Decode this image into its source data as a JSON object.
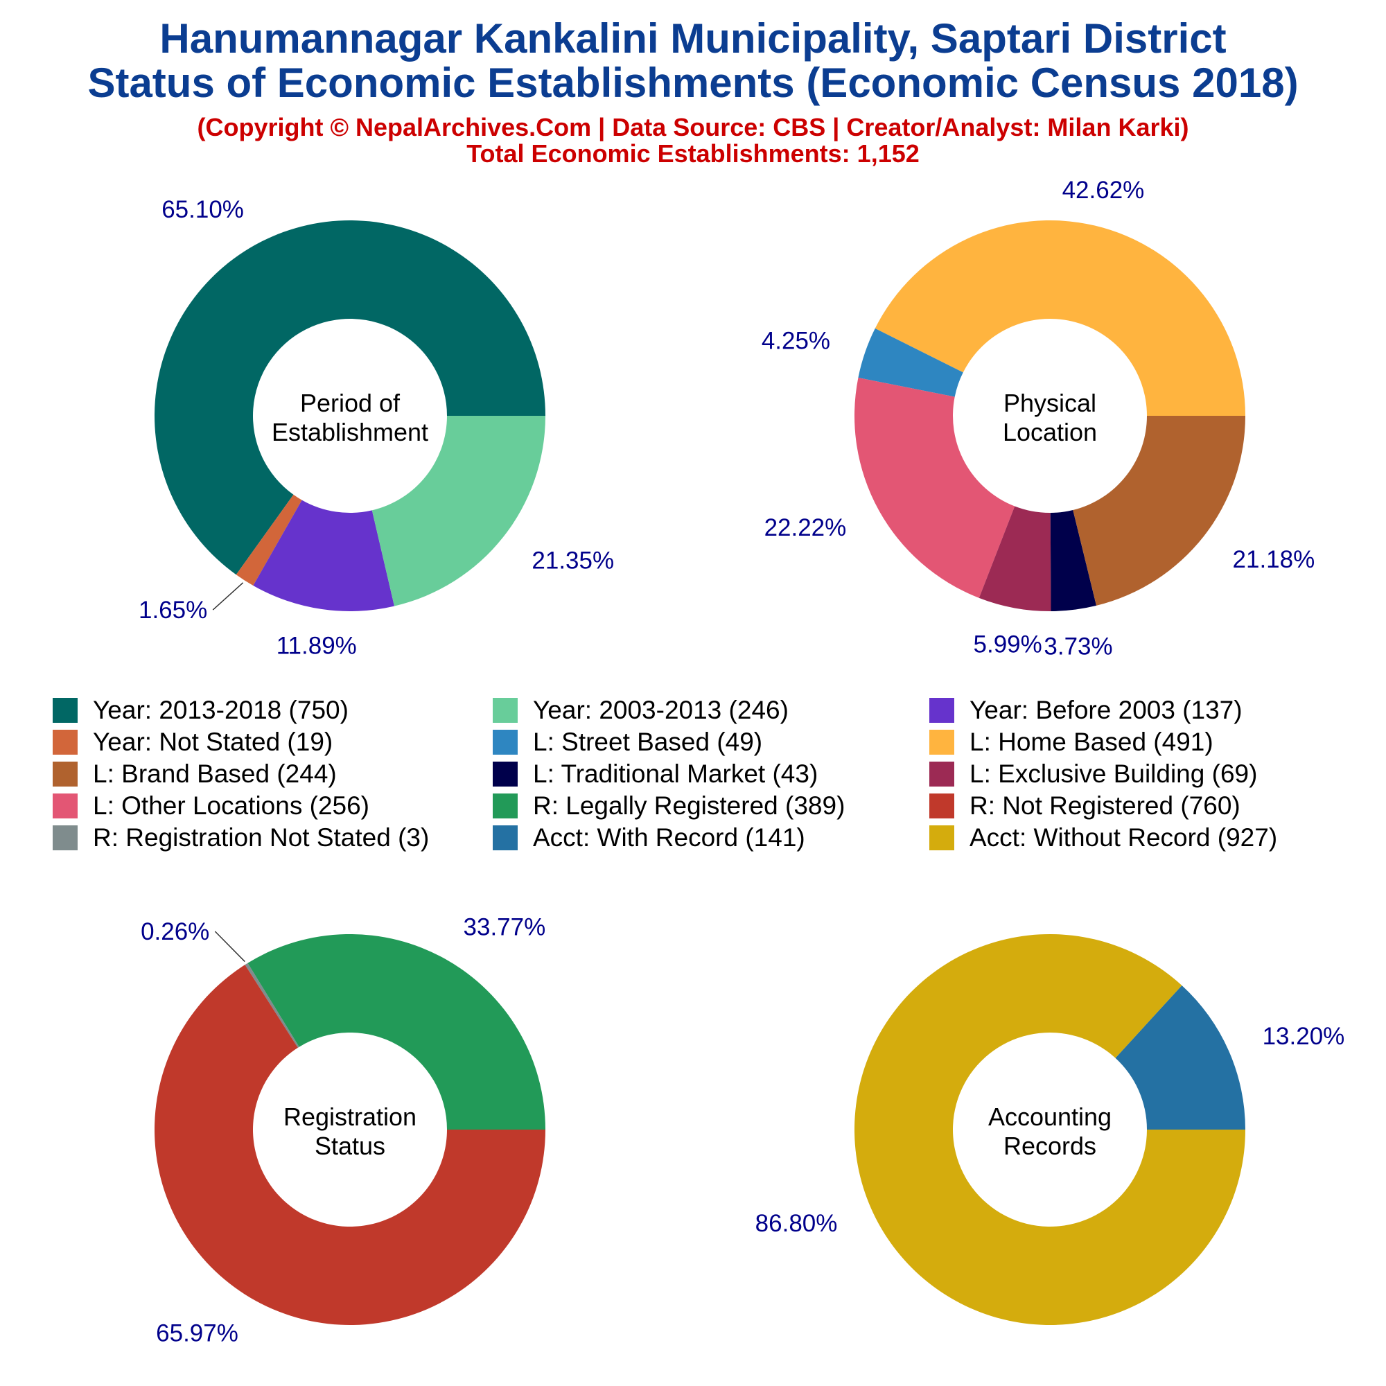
{
  "header": {
    "title_line1": "Hanumannagar Kankalini Municipality, Saptari District",
    "title_line2": "Status of Economic Establishments (Economic Census 2018)",
    "credit": "(Copyright © NepalArchives.Com | Data Source: CBS | Creator/Analyst: Milan Karki)",
    "total": "Total Economic Establishments: 1,152"
  },
  "colors": {
    "title": "#0b3d91",
    "credit": "#cc0000",
    "pct_label": "#00008b"
  },
  "legend": [
    {
      "label": "Year: 2013-2018 (750)",
      "color": "#016764"
    },
    {
      "label": "Year: 2003-2013 (246)",
      "color": "#68cd9a"
    },
    {
      "label": "Year: Before 2003 (137)",
      "color": "#6633cc"
    },
    {
      "label": "Year: Not Stated (19)",
      "color": "#d2663a"
    },
    {
      "label": "L: Street Based (49)",
      "color": "#2e86c1"
    },
    {
      "label": "L: Home Based (491)",
      "color": "#ffb43f"
    },
    {
      "label": "L: Brand Based (244)",
      "color": "#b0622e"
    },
    {
      "label": "L: Traditional Market (43)",
      "color": "#00004b"
    },
    {
      "label": "L: Exclusive Building (69)",
      "color": "#9c2a54"
    },
    {
      "label": "L: Other Locations (256)",
      "color": "#e35674"
    },
    {
      "label": "R: Legally Registered (389)",
      "color": "#229a58"
    },
    {
      "label": "R: Not Registered (760)",
      "color": "#c0392b"
    },
    {
      "label": "R: Registration Not Stated (3)",
      "color": "#7f8c8d"
    },
    {
      "label": "Acct: With Record (141)",
      "color": "#2471a3"
    },
    {
      "label": "Acct: Without Record (927)",
      "color": "#d4ac0d"
    }
  ],
  "chart_data": [
    {
      "type": "pie",
      "title": "Period of Establishment",
      "title_lines": [
        "Period of",
        "Establishment"
      ],
      "slices": [
        {
          "name": "Year: 2013-2018",
          "value": 750,
          "pct_label": "65.10%",
          "color": "#016764"
        },
        {
          "name": "Year: Not Stated",
          "value": 19,
          "pct_label": "1.65%",
          "color": "#d2663a"
        },
        {
          "name": "Year: Before 2003",
          "value": 137,
          "pct_label": "11.89%",
          "color": "#6633cc"
        },
        {
          "name": "Year: 2003-2013",
          "value": 246,
          "pct_label": "21.35%",
          "color": "#68cd9a"
        }
      ]
    },
    {
      "type": "pie",
      "title": "Physical Location",
      "title_lines": [
        "Physical",
        "Location"
      ],
      "slices": [
        {
          "name": "L: Home Based",
          "value": 491,
          "pct_label": "42.62%",
          "color": "#ffb43f"
        },
        {
          "name": "L: Street Based",
          "value": 49,
          "pct_label": "4.25%",
          "color": "#2e86c1"
        },
        {
          "name": "L: Other Locations",
          "value": 256,
          "pct_label": "22.22%",
          "color": "#e35674"
        },
        {
          "name": "L: Exclusive Building",
          "value": 69,
          "pct_label": "5.99%",
          "color": "#9c2a54"
        },
        {
          "name": "L: Traditional Market",
          "value": 43,
          "pct_label": "3.73%",
          "color": "#00004b"
        },
        {
          "name": "L: Brand Based",
          "value": 244,
          "pct_label": "21.18%",
          "color": "#b0622e"
        }
      ]
    },
    {
      "type": "pie",
      "title": "Registration Status",
      "title_lines": [
        "Registration",
        "Status"
      ],
      "slices": [
        {
          "name": "R: Legally Registered",
          "value": 389,
          "pct_label": "33.77%",
          "color": "#229a58"
        },
        {
          "name": "R: Registration Not Stated",
          "value": 3,
          "pct_label": "0.26%",
          "color": "#7f8c8d"
        },
        {
          "name": "R: Not Registered",
          "value": 760,
          "pct_label": "65.97%",
          "color": "#c0392b"
        }
      ]
    },
    {
      "type": "pie",
      "title": "Accounting Records",
      "title_lines": [
        "Accounting",
        "Records"
      ],
      "slices": [
        {
          "name": "Acct: With Record",
          "value": 141,
          "pct_label": "13.20%",
          "color": "#2471a3"
        },
        {
          "name": "Acct: Without Record",
          "value": 927,
          "pct_label": "86.80%",
          "color": "#d4ac0d"
        }
      ]
    }
  ]
}
